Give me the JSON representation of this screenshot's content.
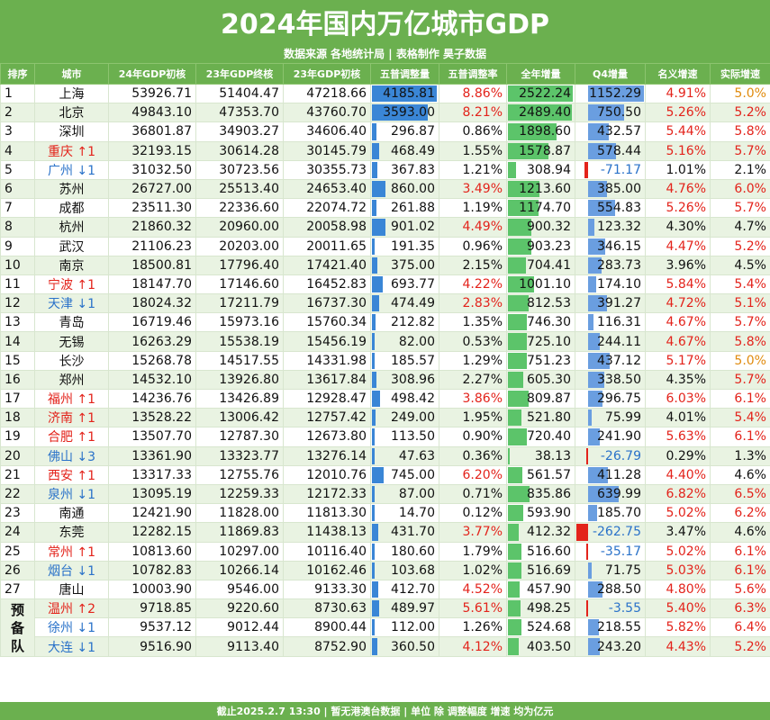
{
  "title": "2024年国内万亿城市GDP",
  "subtitle": "数据来源 各地统计局 | 表格制作 昊子数据",
  "headers": [
    "排序",
    "城市",
    "24年GDP初核",
    "23年GDP终核",
    "23年GDP初核",
    "五普调整量",
    "五普调整率",
    "全年增量",
    "Q4增量",
    "名义增速",
    "实际增速"
  ],
  "reserve_label": [
    "预",
    "备",
    "队"
  ],
  "footer": "截止2025.2.7  13:30 | 暂无港澳台数据 | 单位 除 调整幅度 增速 均为亿元",
  "rows": [
    {
      "rank": "1",
      "city": "上海",
      "gdp24": "53926.71",
      "gdp23f": "51404.47",
      "gdp23p": "47218.66",
      "adj": "4185.81",
      "adjr": "8.86%",
      "inc": "2522.24",
      "q4": "1152.29",
      "nom": "4.91%",
      "real": "5.0%"
    },
    {
      "rank": "2",
      "city": "北京",
      "gdp24": "49843.10",
      "gdp23f": "47353.70",
      "gdp23p": "43760.70",
      "adj": "3593.00",
      "adjr": "8.21%",
      "inc": "2489.40",
      "q4": "750.50",
      "nom": "5.26%",
      "real": "5.2%"
    },
    {
      "rank": "3",
      "city": "深圳",
      "gdp24": "36801.87",
      "gdp23f": "34903.27",
      "gdp23p": "34606.40",
      "adj": "296.87",
      "adjr": "0.86%",
      "inc": "1898.60",
      "q4": "432.57",
      "nom": "5.44%",
      "real": "5.8%"
    },
    {
      "rank": "4",
      "city": "重庆 ↑1",
      "gdp24": "32193.15",
      "gdp23f": "30614.28",
      "gdp23p": "30145.79",
      "adj": "468.49",
      "adjr": "1.55%",
      "inc": "1578.87",
      "q4": "578.44",
      "nom": "5.16%",
      "real": "5.7%"
    },
    {
      "rank": "5",
      "city": "广州 ↓1",
      "gdp24": "31032.50",
      "gdp23f": "30723.56",
      "gdp23p": "30355.73",
      "adj": "367.83",
      "adjr": "1.21%",
      "inc": "308.94",
      "q4": "-71.17",
      "nom": "1.01%",
      "real": "2.1%"
    },
    {
      "rank": "6",
      "city": "苏州",
      "gdp24": "26727.00",
      "gdp23f": "25513.40",
      "gdp23p": "24653.40",
      "adj": "860.00",
      "adjr": "3.49%",
      "inc": "1213.60",
      "q4": "385.00",
      "nom": "4.76%",
      "real": "6.0%"
    },
    {
      "rank": "7",
      "city": "成都",
      "gdp24": "23511.30",
      "gdp23f": "22336.60",
      "gdp23p": "22074.72",
      "adj": "261.88",
      "adjr": "1.19%",
      "inc": "1174.70",
      "q4": "554.83",
      "nom": "5.26%",
      "real": "5.7%"
    },
    {
      "rank": "8",
      "city": "杭州",
      "gdp24": "21860.32",
      "gdp23f": "20960.00",
      "gdp23p": "20058.98",
      "adj": "901.02",
      "adjr": "4.49%",
      "inc": "900.32",
      "q4": "123.32",
      "nom": "4.30%",
      "real": "4.7%"
    },
    {
      "rank": "9",
      "city": "武汉",
      "gdp24": "21106.23",
      "gdp23f": "20203.00",
      "gdp23p": "20011.65",
      "adj": "191.35",
      "adjr": "0.96%",
      "inc": "903.23",
      "q4": "346.15",
      "nom": "4.47%",
      "real": "5.2%"
    },
    {
      "rank": "10",
      "city": "南京",
      "gdp24": "18500.81",
      "gdp23f": "17796.40",
      "gdp23p": "17421.40",
      "adj": "375.00",
      "adjr": "2.15%",
      "inc": "704.41",
      "q4": "283.73",
      "nom": "3.96%",
      "real": "4.5%"
    },
    {
      "rank": "11",
      "city": "宁波 ↑1",
      "gdp24": "18147.70",
      "gdp23f": "17146.60",
      "gdp23p": "16452.83",
      "adj": "693.77",
      "adjr": "4.22%",
      "inc": "1001.10",
      "q4": "174.10",
      "nom": "5.84%",
      "real": "5.4%"
    },
    {
      "rank": "12",
      "city": "天津 ↓1",
      "gdp24": "18024.32",
      "gdp23f": "17211.79",
      "gdp23p": "16737.30",
      "adj": "474.49",
      "adjr": "2.83%",
      "inc": "812.53",
      "q4": "391.27",
      "nom": "4.72%",
      "real": "5.1%"
    },
    {
      "rank": "13",
      "city": "青岛",
      "gdp24": "16719.46",
      "gdp23f": "15973.16",
      "gdp23p": "15760.34",
      "adj": "212.82",
      "adjr": "1.35%",
      "inc": "746.30",
      "q4": "116.31",
      "nom": "4.67%",
      "real": "5.7%"
    },
    {
      "rank": "14",
      "city": "无锡",
      "gdp24": "16263.29",
      "gdp23f": "15538.19",
      "gdp23p": "15456.19",
      "adj": "82.00",
      "adjr": "0.53%",
      "inc": "725.10",
      "q4": "244.11",
      "nom": "4.67%",
      "real": "5.8%"
    },
    {
      "rank": "15",
      "city": "长沙",
      "gdp24": "15268.78",
      "gdp23f": "14517.55",
      "gdp23p": "14331.98",
      "adj": "185.57",
      "adjr": "1.29%",
      "inc": "751.23",
      "q4": "437.12",
      "nom": "5.17%",
      "real": "5.0%"
    },
    {
      "rank": "16",
      "city": "郑州",
      "gdp24": "14532.10",
      "gdp23f": "13926.80",
      "gdp23p": "13617.84",
      "adj": "308.96",
      "adjr": "2.27%",
      "inc": "605.30",
      "q4": "338.50",
      "nom": "4.35%",
      "real": "5.7%"
    },
    {
      "rank": "17",
      "city": "福州 ↑1",
      "gdp24": "14236.76",
      "gdp23f": "13426.89",
      "gdp23p": "12928.47",
      "adj": "498.42",
      "adjr": "3.86%",
      "inc": "809.87",
      "q4": "296.75",
      "nom": "6.03%",
      "real": "6.1%"
    },
    {
      "rank": "18",
      "city": "济南 ↑1",
      "gdp24": "13528.22",
      "gdp23f": "13006.42",
      "gdp23p": "12757.42",
      "adj": "249.00",
      "adjr": "1.95%",
      "inc": "521.80",
      "q4": "75.99",
      "nom": "4.01%",
      "real": "5.4%"
    },
    {
      "rank": "19",
      "city": "合肥 ↑1",
      "gdp24": "13507.70",
      "gdp23f": "12787.30",
      "gdp23p": "12673.80",
      "adj": "113.50",
      "adjr": "0.90%",
      "inc": "720.40",
      "q4": "241.90",
      "nom": "5.63%",
      "real": "6.1%"
    },
    {
      "rank": "20",
      "city": "佛山 ↓3",
      "gdp24": "13361.90",
      "gdp23f": "13323.77",
      "gdp23p": "13276.14",
      "adj": "47.63",
      "adjr": "0.36%",
      "inc": "38.13",
      "q4": "-26.79",
      "nom": "0.29%",
      "real": "1.3%"
    },
    {
      "rank": "21",
      "city": "西安 ↑1",
      "gdp24": "13317.33",
      "gdp23f": "12755.76",
      "gdp23p": "12010.76",
      "adj": "745.00",
      "adjr": "6.20%",
      "inc": "561.57",
      "q4": "411.28",
      "nom": "4.40%",
      "real": "4.6%"
    },
    {
      "rank": "22",
      "city": "泉州 ↓1",
      "gdp24": "13095.19",
      "gdp23f": "12259.33",
      "gdp23p": "12172.33",
      "adj": "87.00",
      "adjr": "0.71%",
      "inc": "835.86",
      "q4": "639.99",
      "nom": "6.82%",
      "real": "6.5%"
    },
    {
      "rank": "23",
      "city": "南通",
      "gdp24": "12421.90",
      "gdp23f": "11828.00",
      "gdp23p": "11813.30",
      "adj": "14.70",
      "adjr": "0.12%",
      "inc": "593.90",
      "q4": "185.70",
      "nom": "5.02%",
      "real": "6.2%"
    },
    {
      "rank": "24",
      "city": "东莞",
      "gdp24": "12282.15",
      "gdp23f": "11869.83",
      "gdp23p": "11438.13",
      "adj": "431.70",
      "adjr": "3.77%",
      "inc": "412.32",
      "q4": "-262.75",
      "nom": "3.47%",
      "real": "4.6%"
    },
    {
      "rank": "25",
      "city": "常州 ↑1",
      "gdp24": "10813.60",
      "gdp23f": "10297.00",
      "gdp23p": "10116.40",
      "adj": "180.60",
      "adjr": "1.79%",
      "inc": "516.60",
      "q4": "-35.17",
      "nom": "5.02%",
      "real": "6.1%"
    },
    {
      "rank": "26",
      "city": "烟台 ↓1",
      "gdp24": "10782.83",
      "gdp23f": "10266.14",
      "gdp23p": "10162.46",
      "adj": "103.68",
      "adjr": "1.02%",
      "inc": "516.69",
      "q4": "71.75",
      "nom": "5.03%",
      "real": "6.1%"
    },
    {
      "rank": "27",
      "city": "唐山",
      "gdp24": "10003.90",
      "gdp23f": "9546.00",
      "gdp23p": "9133.30",
      "adj": "412.70",
      "adjr": "4.52%",
      "inc": "457.90",
      "q4": "288.50",
      "nom": "4.80%",
      "real": "5.6%"
    },
    {
      "rank": "",
      "city": "温州 ↑2",
      "gdp24": "9718.85",
      "gdp23f": "9220.60",
      "gdp23p": "8730.63",
      "adj": "489.97",
      "adjr": "5.61%",
      "inc": "498.25",
      "q4": "-3.55",
      "nom": "5.40%",
      "real": "6.3%"
    },
    {
      "rank": "",
      "city": "徐州 ↓1",
      "gdp24": "9537.12",
      "gdp23f": "9012.44",
      "gdp23p": "8900.44",
      "adj": "112.00",
      "adjr": "1.26%",
      "inc": "524.68",
      "q4": "218.55",
      "nom": "5.82%",
      "real": "6.4%"
    },
    {
      "rank": "",
      "city": "大连 ↓1",
      "gdp24": "9516.90",
      "gdp23f": "9113.40",
      "gdp23p": "8752.90",
      "adj": "360.50",
      "adjr": "4.12%",
      "inc": "403.50",
      "q4": "243.20",
      "nom": "4.43%",
      "real": "5.2%"
    }
  ]
}
